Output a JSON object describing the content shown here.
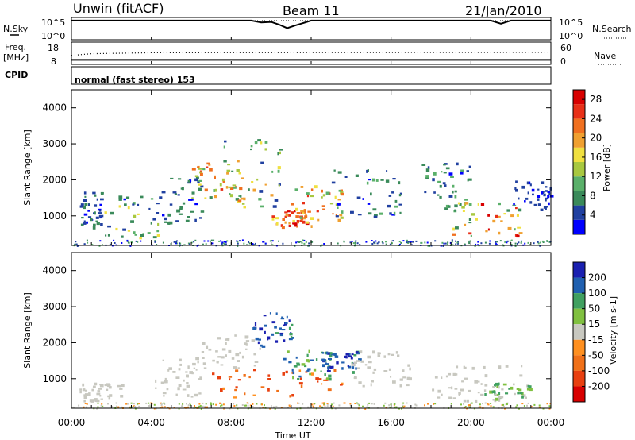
{
  "header": {
    "station": "Unwin (fitACF)",
    "beam": "Beam 11",
    "date": "21/Jan/2010"
  },
  "aux_panels": {
    "nsky_label": "N.Sky",
    "nsky_ticks": [
      "10^5",
      "10^0"
    ],
    "nsearch_label": "N.Search",
    "nsearch_ticks": [
      "10^5",
      "10^0"
    ],
    "freq_label": "Freq.",
    "freq_unit": "[MHz]",
    "freq_ticks": [
      "18",
      "8"
    ],
    "nave_label": "Nave",
    "nave_ticks": [
      "60",
      "0"
    ],
    "cpid_label": "CPID",
    "cpid_text": "normal (fast stereo) 153"
  },
  "colors": {
    "power": [
      "#0000ff",
      "#2040a0",
      "#3a8a5a",
      "#5ab06a",
      "#a8c840",
      "#f0e040",
      "#f0a030",
      "#f07020",
      "#e83018",
      "#d80000"
    ],
    "velocity_pos": [
      "#1a20b0",
      "#2060b0",
      "#40a060",
      "#80c040"
    ],
    "velocity_neg": [
      "#ff9020",
      "#f07018",
      "#e84010",
      "#d80000"
    ],
    "velocity_mid": "#c8c8c0"
  },
  "chart_data": [
    {
      "type": "line",
      "name": "N.Sky / N.Search",
      "x_range": [
        0,
        24
      ],
      "ylim_log": [
        0,
        5
      ],
      "y_ticks": [
        "10^5",
        "10^0"
      ],
      "series": [
        {
          "name": "N.Sky",
          "x": [
            0,
            9,
            9.5,
            10,
            10.4,
            10.8,
            11.2,
            12,
            21,
            21.5,
            22,
            24
          ],
          "y": [
            4.3,
            4.3,
            3.9,
            4.0,
            3.4,
            2.6,
            3.2,
            4.3,
            4.3,
            3.6,
            4.3,
            4.3
          ]
        },
        {
          "name": "N.Search",
          "x": [
            0,
            24
          ],
          "y": [
            4.3,
            4.3
          ]
        }
      ]
    },
    {
      "type": "line",
      "name": "Freq / Nave",
      "x_range": [
        0,
        24
      ],
      "ylim": [
        8,
        18
      ],
      "y_ticks_left": [
        "18",
        "8"
      ],
      "y_ticks_right": [
        "60",
        "0"
      ],
      "series": [
        {
          "name": "Freq.",
          "x": [
            0,
            24
          ],
          "y": [
            10,
            10
          ]
        },
        {
          "name": "Nave",
          "x": [
            0,
            1,
            4,
            24
          ],
          "y": [
            12,
            12.8,
            13.2,
            13.4
          ]
        }
      ]
    },
    {
      "type": "heatmap",
      "name": "Power",
      "title": "",
      "xlabel": "",
      "ylabel": "Slant Range [km]",
      "x_range": [
        0,
        24
      ],
      "ylim": [
        180,
        4500
      ],
      "y_ticks": [
        1000,
        2000,
        3000,
        4000
      ],
      "colorbar": {
        "label": "Power [dB]",
        "ticks": [
          4,
          8,
          12,
          16,
          20,
          24,
          28
        ],
        "range": [
          0,
          30
        ]
      },
      "regions": [
        {
          "x": [
            0.4,
            1.5
          ],
          "r": [
            700,
            1700
          ],
          "level": [
            2,
            8
          ]
        },
        {
          "x": [
            1.5,
            4.5
          ],
          "r": [
            400,
            1600
          ],
          "level": [
            2,
            18
          ]
        },
        {
          "x": [
            4.5,
            6.5
          ],
          "r": [
            800,
            2200
          ],
          "level": [
            2,
            10
          ]
        },
        {
          "x": [
            6.0,
            8.5
          ],
          "r": [
            1500,
            2500
          ],
          "level": [
            8,
            26
          ]
        },
        {
          "x": [
            7.5,
            10.5
          ],
          "r": [
            1200,
            3200
          ],
          "level": [
            4,
            22
          ]
        },
        {
          "x": [
            10.0,
            12.0
          ],
          "r": [
            700,
            1200
          ],
          "level": [
            16,
            30
          ]
        },
        {
          "x": [
            11.0,
            13.5
          ],
          "r": [
            900,
            1900
          ],
          "level": [
            10,
            26
          ]
        },
        {
          "x": [
            13.0,
            16.5
          ],
          "r": [
            1000,
            2300
          ],
          "level": [
            2,
            10
          ]
        },
        {
          "x": [
            17.5,
            20.0
          ],
          "r": [
            1200,
            2500
          ],
          "level": [
            2,
            12
          ]
        },
        {
          "x": [
            19.0,
            22.5
          ],
          "r": [
            400,
            1400
          ],
          "level": [
            6,
            28
          ]
        },
        {
          "x": [
            22.0,
            24.0
          ],
          "r": [
            1200,
            2000
          ],
          "level": [
            2,
            6
          ]
        }
      ]
    },
    {
      "type": "heatmap",
      "name": "Velocity",
      "title": "",
      "xlabel": "Time UT",
      "ylabel": "Slant Range [km]",
      "x_range": [
        0,
        24
      ],
      "x_ticks": [
        "00:00",
        "04:00",
        "08:00",
        "12:00",
        "16:00",
        "20:00",
        "00:00"
      ],
      "ylim": [
        180,
        4500
      ],
      "y_ticks": [
        1000,
        2000,
        3000,
        4000
      ],
      "colorbar": {
        "label": "Velocity [m s-1]",
        "ticks": [
          200,
          100,
          50,
          15,
          -15,
          -50,
          -100,
          -200
        ],
        "range": [
          -250,
          250
        ]
      },
      "regions": [
        {
          "x": [
            0.4,
            2.5
          ],
          "r": [
            400,
            900
          ],
          "velocity": [
            -15,
            15
          ]
        },
        {
          "x": [
            4.0,
            6.5
          ],
          "r": [
            500,
            1600
          ],
          "velocity": [
            -15,
            15
          ]
        },
        {
          "x": [
            6.5,
            9.5
          ],
          "r": [
            1300,
            2300
          ],
          "velocity": [
            -15,
            15
          ]
        },
        {
          "x": [
            7.0,
            13.5
          ],
          "r": [
            500,
            1300
          ],
          "velocity": [
            -150,
            -20
          ]
        },
        {
          "x": [
            10.5,
            13.0
          ],
          "r": [
            1000,
            1800
          ],
          "velocity": [
            20,
            120
          ]
        },
        {
          "x": [
            9.0,
            11.0
          ],
          "r": [
            1900,
            2900
          ],
          "velocity": [
            50,
            220
          ]
        },
        {
          "x": [
            12.5,
            14.5
          ],
          "r": [
            1200,
            1800
          ],
          "velocity": [
            50,
            200
          ]
        },
        {
          "x": [
            14.0,
            17.0
          ],
          "r": [
            800,
            1800
          ],
          "velocity": [
            -15,
            15
          ]
        },
        {
          "x": [
            18.0,
            22.5
          ],
          "r": [
            400,
            1400
          ],
          "velocity": [
            -15,
            15
          ]
        },
        {
          "x": [
            20.5,
            23.0
          ],
          "r": [
            400,
            900
          ],
          "velocity": [
            -15,
            50
          ]
        }
      ]
    }
  ]
}
